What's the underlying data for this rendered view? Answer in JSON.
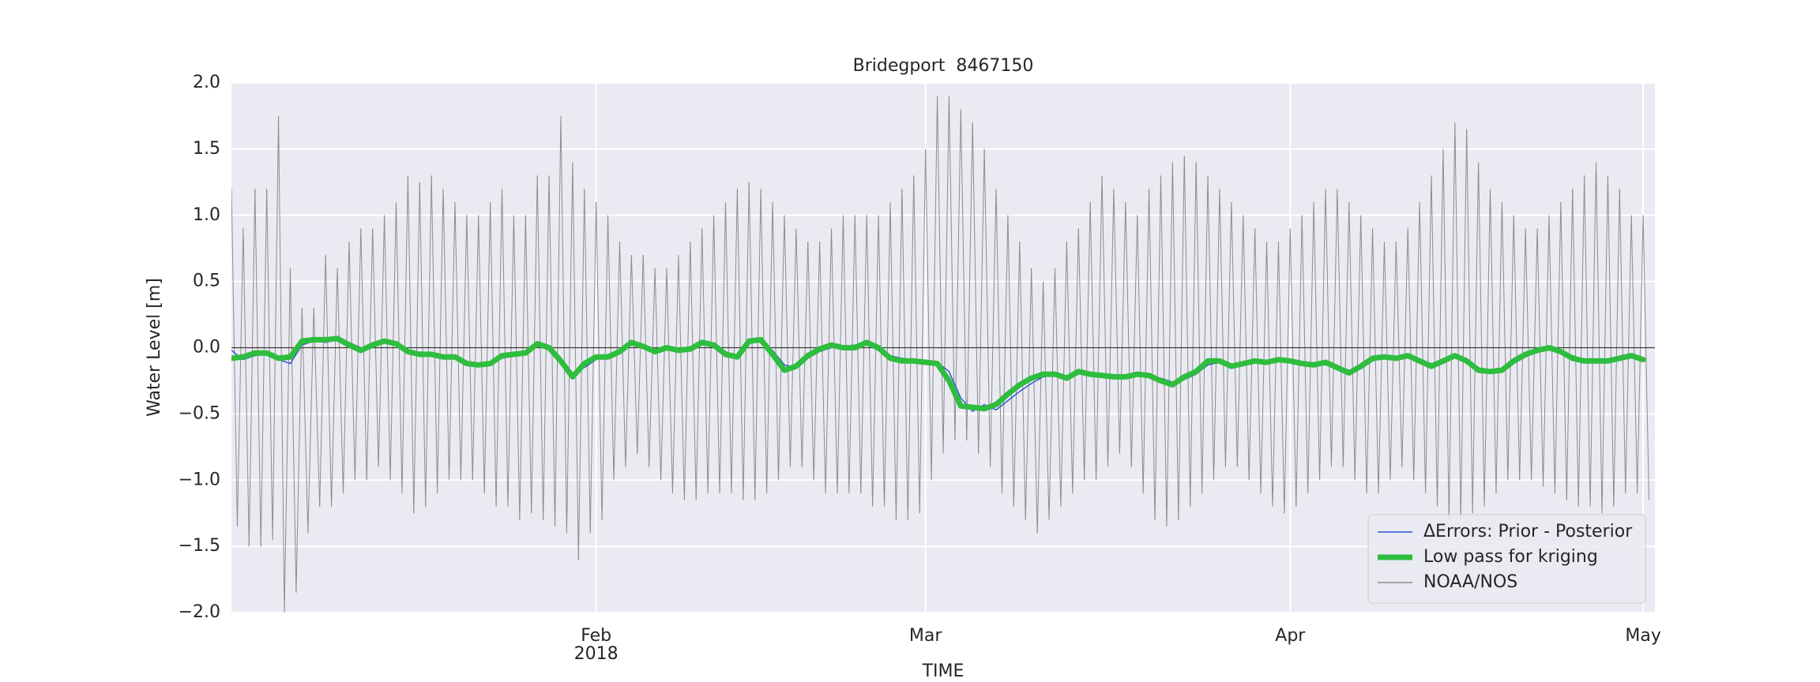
{
  "chart_data": {
    "type": "line",
    "title": "Bridegport  8467150",
    "xlabel": "TIME",
    "ylabel": "Water Level [m]",
    "xlim": [
      "2018-01-01",
      "2018-05-02"
    ],
    "xticks": [
      {
        "value": "2018-02-01",
        "label": "Feb"
      },
      {
        "value": "2018-03-01",
        "label": "Mar"
      },
      {
        "value": "2018-04-01",
        "label": "Apr"
      },
      {
        "value": "2018-05-01",
        "label": "May"
      }
    ],
    "xtick_sublabels": [
      "2018",
      null,
      null,
      null
    ],
    "ylim": [
      -2.0,
      2.0
    ],
    "yticks": [
      {
        "value": -2.0,
        "label": "−2.0"
      },
      {
        "value": -1.5,
        "label": "−1.5"
      },
      {
        "value": -1.0,
        "label": "−1.0"
      },
      {
        "value": -0.5,
        "label": "−0.5"
      },
      {
        "value": 0.0,
        "label": "0.0"
      },
      {
        "value": 0.5,
        "label": "0.5"
      },
      {
        "value": 1.0,
        "label": "1.0"
      },
      {
        "value": 1.5,
        "label": "1.5"
      },
      {
        "value": 2.0,
        "label": "2.0"
      }
    ],
    "grid": true,
    "hline": 0,
    "legend": "lower right",
    "x": [
      "2018-01-01",
      "2018-01-02",
      "2018-01-03",
      "2018-01-04",
      "2018-01-05",
      "2018-01-06",
      "2018-01-07",
      "2018-01-08",
      "2018-01-09",
      "2018-01-10",
      "2018-01-11",
      "2018-01-12",
      "2018-01-13",
      "2018-01-14",
      "2018-01-15",
      "2018-01-16",
      "2018-01-17",
      "2018-01-18",
      "2018-01-19",
      "2018-01-20",
      "2018-01-21",
      "2018-01-22",
      "2018-01-23",
      "2018-01-24",
      "2018-01-25",
      "2018-01-26",
      "2018-01-27",
      "2018-01-28",
      "2018-01-29",
      "2018-01-30",
      "2018-01-31",
      "2018-02-01",
      "2018-02-02",
      "2018-02-03",
      "2018-02-04",
      "2018-02-05",
      "2018-02-06",
      "2018-02-07",
      "2018-02-08",
      "2018-02-09",
      "2018-02-10",
      "2018-02-11",
      "2018-02-12",
      "2018-02-13",
      "2018-02-14",
      "2018-02-15",
      "2018-02-16",
      "2018-02-17",
      "2018-02-18",
      "2018-02-19",
      "2018-02-20",
      "2018-02-21",
      "2018-02-22",
      "2018-02-23",
      "2018-02-24",
      "2018-02-25",
      "2018-02-26",
      "2018-02-27",
      "2018-02-28",
      "2018-03-01",
      "2018-03-02",
      "2018-03-03",
      "2018-03-04",
      "2018-03-05",
      "2018-03-06",
      "2018-03-07",
      "2018-03-08",
      "2018-03-09",
      "2018-03-10",
      "2018-03-11",
      "2018-03-12",
      "2018-03-13",
      "2018-03-14",
      "2018-03-15",
      "2018-03-16",
      "2018-03-17",
      "2018-03-18",
      "2018-03-19",
      "2018-03-20",
      "2018-03-21",
      "2018-03-22",
      "2018-03-23",
      "2018-03-24",
      "2018-03-25",
      "2018-03-26",
      "2018-03-27",
      "2018-03-28",
      "2018-03-29",
      "2018-03-30",
      "2018-03-31",
      "2018-04-01",
      "2018-04-02",
      "2018-04-03",
      "2018-04-04",
      "2018-04-05",
      "2018-04-06",
      "2018-04-07",
      "2018-04-08",
      "2018-04-09",
      "2018-04-10",
      "2018-04-11",
      "2018-04-12",
      "2018-04-13",
      "2018-04-14",
      "2018-04-15",
      "2018-04-16",
      "2018-04-17",
      "2018-04-18",
      "2018-04-19",
      "2018-04-20",
      "2018-04-21",
      "2018-04-22",
      "2018-04-23",
      "2018-04-24",
      "2018-04-25",
      "2018-04-26",
      "2018-04-27",
      "2018-04-28",
      "2018-04-29",
      "2018-04-30",
      "2018-05-01"
    ],
    "series": [
      {
        "name": "ΔErrors: Prior - Posterior",
        "color": "#2a4fd6",
        "width": 1,
        "values": [
          -0.02,
          -0.09,
          -0.06,
          -0.05,
          -0.09,
          -0.12,
          0.02,
          0.05,
          0.04,
          0.06,
          0.04,
          0.0,
          0.01,
          0.04,
          0.04,
          -0.02,
          -0.04,
          -0.06,
          -0.06,
          -0.08,
          -0.11,
          -0.12,
          -0.12,
          -0.08,
          -0.06,
          -0.03,
          0.02,
          0.01,
          -0.08,
          -0.19,
          -0.15,
          -0.09,
          -0.05,
          -0.04,
          0.02,
          0.01,
          -0.02,
          -0.01,
          -0.03,
          -0.02,
          0.02,
          0.03,
          -0.03,
          -0.06,
          0.03,
          0.05,
          -0.02,
          -0.13,
          -0.15,
          -0.08,
          -0.03,
          0.0,
          0.01,
          0.02,
          0.02,
          -0.02,
          -0.06,
          -0.08,
          -0.09,
          -0.1,
          -0.11,
          -0.18,
          -0.38,
          -0.48,
          -0.43,
          -0.47,
          -0.4,
          -0.33,
          -0.27,
          -0.22,
          -0.21,
          -0.24,
          -0.2,
          -0.19,
          -0.22,
          -0.23,
          -0.21,
          -0.21,
          -0.22,
          -0.23,
          -0.26,
          -0.24,
          -0.2,
          -0.13,
          -0.11,
          -0.13,
          -0.12,
          -0.11,
          -0.1,
          -0.1,
          -0.09,
          -0.11,
          -0.13,
          -0.12,
          -0.14,
          -0.17,
          -0.16,
          -0.1,
          -0.07,
          -0.07,
          -0.07,
          -0.09,
          -0.12,
          -0.12,
          -0.07,
          -0.08,
          -0.15,
          -0.18,
          -0.17,
          -0.12,
          -0.07,
          -0.03,
          -0.01,
          -0.02,
          -0.06,
          -0.09,
          -0.1,
          -0.1,
          -0.09,
          -0.07,
          -0.08
        ]
      },
      {
        "name": "Low pass for kriging",
        "color": "#2ebd3e",
        "width": 5,
        "values": [
          -0.08,
          -0.07,
          -0.04,
          -0.04,
          -0.08,
          -0.07,
          0.05,
          0.06,
          0.06,
          0.07,
          0.02,
          -0.02,
          0.02,
          0.05,
          0.03,
          -0.03,
          -0.05,
          -0.05,
          -0.07,
          -0.07,
          -0.12,
          -0.13,
          -0.12,
          -0.06,
          -0.05,
          -0.04,
          0.03,
          0.0,
          -0.1,
          -0.22,
          -0.12,
          -0.07,
          -0.07,
          -0.03,
          0.04,
          0.01,
          -0.03,
          0.0,
          -0.02,
          -0.01,
          0.04,
          0.02,
          -0.05,
          -0.07,
          0.05,
          0.06,
          -0.05,
          -0.17,
          -0.14,
          -0.06,
          -0.01,
          0.02,
          0.0,
          0.0,
          0.04,
          0.0,
          -0.08,
          -0.1,
          -0.1,
          -0.11,
          -0.12,
          -0.25,
          -0.44,
          -0.45,
          -0.46,
          -0.43,
          -0.35,
          -0.28,
          -0.23,
          -0.2,
          -0.2,
          -0.23,
          -0.18,
          -0.2,
          -0.21,
          -0.22,
          -0.22,
          -0.2,
          -0.21,
          -0.25,
          -0.28,
          -0.22,
          -0.18,
          -0.1,
          -0.1,
          -0.14,
          -0.12,
          -0.1,
          -0.11,
          -0.09,
          -0.1,
          -0.12,
          -0.13,
          -0.11,
          -0.15,
          -0.19,
          -0.14,
          -0.08,
          -0.07,
          -0.08,
          -0.06,
          -0.1,
          -0.14,
          -0.1,
          -0.06,
          -0.1,
          -0.17,
          -0.18,
          -0.17,
          -0.1,
          -0.05,
          -0.02,
          0.0,
          -0.03,
          -0.08,
          -0.1,
          -0.1,
          -0.1,
          -0.08,
          -0.06,
          -0.09
        ]
      },
      {
        "name": "NOAA/NOS",
        "color": "#8c8c8c",
        "width": 1,
        "highs": [
          1.2,
          0.9,
          1.2,
          1.2,
          1.75,
          0.6,
          0.3,
          0.3,
          0.7,
          0.6,
          0.8,
          0.9,
          0.9,
          1.0,
          1.1,
          1.3,
          1.25,
          1.3,
          1.2,
          1.1,
          1.0,
          1.0,
          1.1,
          1.2,
          1.0,
          1.0,
          1.3,
          1.3,
          1.75,
          1.4,
          1.2,
          1.1,
          1.0,
          0.8,
          0.7,
          0.7,
          0.6,
          0.6,
          0.7,
          0.8,
          0.9,
          1.0,
          1.1,
          1.2,
          1.25,
          1.2,
          1.1,
          1.0,
          0.9,
          0.8,
          0.8,
          0.9,
          1.0,
          1.0,
          1.0,
          1.0,
          1.1,
          1.2,
          1.3,
          1.5,
          1.9,
          1.9,
          1.8,
          1.7,
          1.5,
          1.2,
          1.0,
          0.8,
          0.6,
          0.5,
          0.6,
          0.8,
          0.9,
          1.1,
          1.3,
          1.2,
          1.1,
          1.0,
          1.2,
          1.3,
          1.4,
          1.45,
          1.4,
          1.3,
          1.2,
          1.1,
          1.0,
          0.9,
          0.8,
          0.8,
          0.9,
          1.0,
          1.1,
          1.2,
          1.2,
          1.1,
          1.0,
          0.9,
          0.8,
          0.8,
          0.9,
          1.1,
          1.3,
          1.5,
          1.7,
          1.65,
          1.4,
          1.2,
          1.1,
          1.0,
          0.9,
          0.9,
          1.0,
          1.1,
          1.2,
          1.3,
          1.4,
          1.3,
          1.2,
          1.0,
          1.0
        ],
        "lows": [
          -1.35,
          -1.5,
          -1.5,
          -1.45,
          -2.0,
          -1.85,
          -1.4,
          -1.2,
          -1.2,
          -1.1,
          -1.0,
          -1.0,
          -0.9,
          -1.0,
          -1.1,
          -1.25,
          -1.2,
          -1.1,
          -1.0,
          -1.0,
          -1.0,
          -1.1,
          -1.2,
          -1.2,
          -1.3,
          -1.25,
          -1.3,
          -1.35,
          -1.4,
          -1.6,
          -1.4,
          -1.3,
          -1.0,
          -0.9,
          -0.8,
          -0.9,
          -1.0,
          -1.1,
          -1.15,
          -1.15,
          -1.1,
          -1.1,
          -1.1,
          -1.15,
          -1.15,
          -1.1,
          -1.0,
          -0.9,
          -0.9,
          -1.0,
          -1.1,
          -1.1,
          -1.1,
          -1.1,
          -1.2,
          -1.2,
          -1.3,
          -1.3,
          -1.25,
          -1.0,
          -0.8,
          -0.7,
          -0.7,
          -0.8,
          -0.9,
          -1.1,
          -1.2,
          -1.3,
          -1.4,
          -1.3,
          -1.2,
          -1.1,
          -1.0,
          -1.0,
          -0.9,
          -0.8,
          -0.9,
          -1.1,
          -1.3,
          -1.35,
          -1.3,
          -1.2,
          -1.1,
          -1.0,
          -0.9,
          -0.9,
          -1.0,
          -1.1,
          -1.2,
          -1.25,
          -1.2,
          -1.1,
          -1.0,
          -0.9,
          -0.9,
          -1.0,
          -1.1,
          -1.1,
          -1.0,
          -0.9,
          -1.0,
          -1.1,
          -1.2,
          -1.3,
          -1.3,
          -1.25,
          -1.2,
          -1.1,
          -1.0,
          -1.0,
          -1.0,
          -1.05,
          -1.1,
          -1.15,
          -1.2,
          -1.2,
          -1.25,
          -1.2,
          -1.1,
          -1.1,
          -1.15
        ]
      }
    ]
  }
}
